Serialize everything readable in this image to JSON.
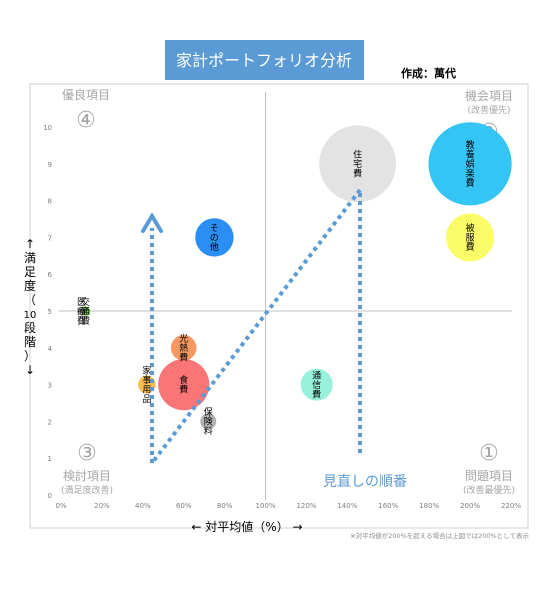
{
  "header": {
    "title": "家計ポートフォリオ分析",
    "author": "作成：萬代"
  },
  "colors": {
    "title_bg": "#5b9bd5",
    "arrow": "#5b9bd5",
    "quadrant_text": "#a6a6a6",
    "note_text": "#5b9bd5"
  },
  "quadrants": {
    "q4": {
      "label": "優良項目",
      "number": "④"
    },
    "q2": {
      "label": "機会項目",
      "number": "②",
      "sub": "(改善優先)"
    },
    "q3": {
      "label": "検討項目",
      "number": "③",
      "sub": "(満足度改善)"
    },
    "q1": {
      "label": "問題項目",
      "number": "①",
      "sub": "(改善最優先)"
    }
  },
  "annotation": {
    "review_order": "見直しの順番"
  },
  "footnote": "※対平均値が200%を超える場合は上図では200%として表示",
  "chart_data": {
    "type": "bubble",
    "xlabel": "←  対平均値（%）  →",
    "ylabel_chars": [
      "↑",
      "満",
      "足",
      "度",
      "（",
      "10",
      "段",
      "階",
      "）",
      "↓"
    ],
    "xlim": [
      0,
      220
    ],
    "ylim": [
      0,
      10
    ],
    "x_ticks": [
      "0%",
      "20%",
      "40%",
      "60%",
      "80%",
      "100%",
      "120%",
      "140%",
      "160%",
      "180%",
      "200%",
      "220%"
    ],
    "x_tick_values": [
      0,
      20,
      40,
      60,
      80,
      100,
      120,
      140,
      160,
      180,
      200,
      220
    ],
    "y_ticks": [
      "0",
      "1",
      "2",
      "3",
      "4",
      "5",
      "6",
      "7",
      "8",
      "9",
      "10"
    ],
    "y_tick_values": [
      0,
      1,
      2,
      3,
      4,
      5,
      6,
      7,
      8,
      9,
      10
    ],
    "reference_lines": {
      "x": 100,
      "y": 5
    },
    "points": [
      {
        "label": "住宅費",
        "x": 145,
        "y": 9,
        "r": 24,
        "color": "#e3e3e3"
      },
      {
        "label": "教養娯楽費",
        "x": 200,
        "y": 9,
        "r": 26,
        "color": "#35c5f5"
      },
      {
        "label": "被服費",
        "x": 200,
        "y": 7,
        "r": 15,
        "color": "#fbfb67"
      },
      {
        "label": "その他",
        "x": 75,
        "y": 7,
        "r": 12,
        "color": "#2b8ef5"
      },
      {
        "label": "交通費",
        "x": 12,
        "y": 5,
        "r": 3,
        "color": "#7fdc5a"
      },
      {
        "label": "医療費",
        "x": 10,
        "y": 5,
        "r": 2.5,
        "color": "#a9a9a9"
      },
      {
        "label": "光熱費",
        "x": 60,
        "y": 4,
        "r": 8,
        "color": "#f79862"
      },
      {
        "label": "家事用品",
        "x": 42,
        "y": 3,
        "r": 5.5,
        "color": "#fcbd4f"
      },
      {
        "label": "食費",
        "x": 60,
        "y": 3,
        "r": 16,
        "color": "#f97576"
      },
      {
        "label": "通信費",
        "x": 125,
        "y": 3,
        "r": 10,
        "color": "#97f1db"
      },
      {
        "label": "保険料",
        "x": 72,
        "y": 2,
        "r": 5,
        "color": "#b3b3b3"
      }
    ]
  }
}
